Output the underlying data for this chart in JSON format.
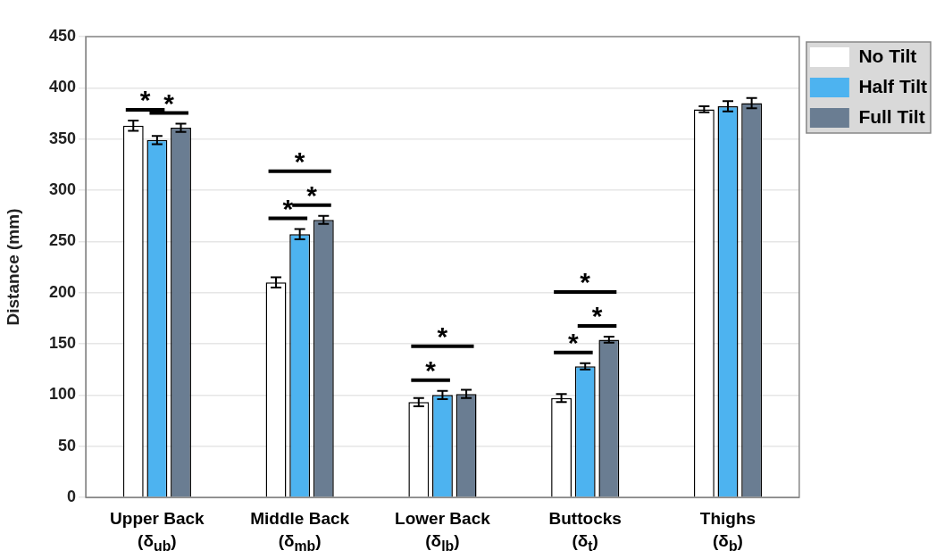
{
  "chart_data": {
    "type": "bar",
    "ylabel": "Distance (mm)",
    "categories": [
      "Upper Back\n(δ$_{ub}$)",
      "Middle Back\n(δ$_{mb}$)",
      "Lower Back\n(δ$_{lb}$)",
      "Buttocks\n(δ$_{t}$)",
      "Thighs\n(δ$_{b}$)"
    ],
    "series": [
      {
        "name": "No Tilt",
        "color": "#ffffff",
        "values": [
          363,
          210,
          93,
          97,
          379
        ],
        "errors": [
          5,
          5,
          4,
          4,
          3
        ]
      },
      {
        "name": "Half Tilt",
        "color": "#4db3f0",
        "values": [
          349,
          257,
          100,
          128,
          382
        ],
        "errors": [
          4,
          5,
          4,
          3,
          5
        ]
      },
      {
        "name": "Full Tilt",
        "color": "#6a7d92",
        "values": [
          361,
          271,
          101,
          154,
          385
        ],
        "errors": [
          4,
          4,
          4,
          3,
          5
        ]
      }
    ],
    "ylim": [
      0,
      450
    ],
    "yticks": [
      0,
      50,
      100,
      150,
      200,
      250,
      300,
      350,
      400,
      450
    ],
    "grid": "y",
    "legend": "top right",
    "annotations": [
      "*",
      "*",
      "*",
      "*",
      "*",
      "*",
      "*",
      "*",
      "*",
      "*"
    ]
  }
}
